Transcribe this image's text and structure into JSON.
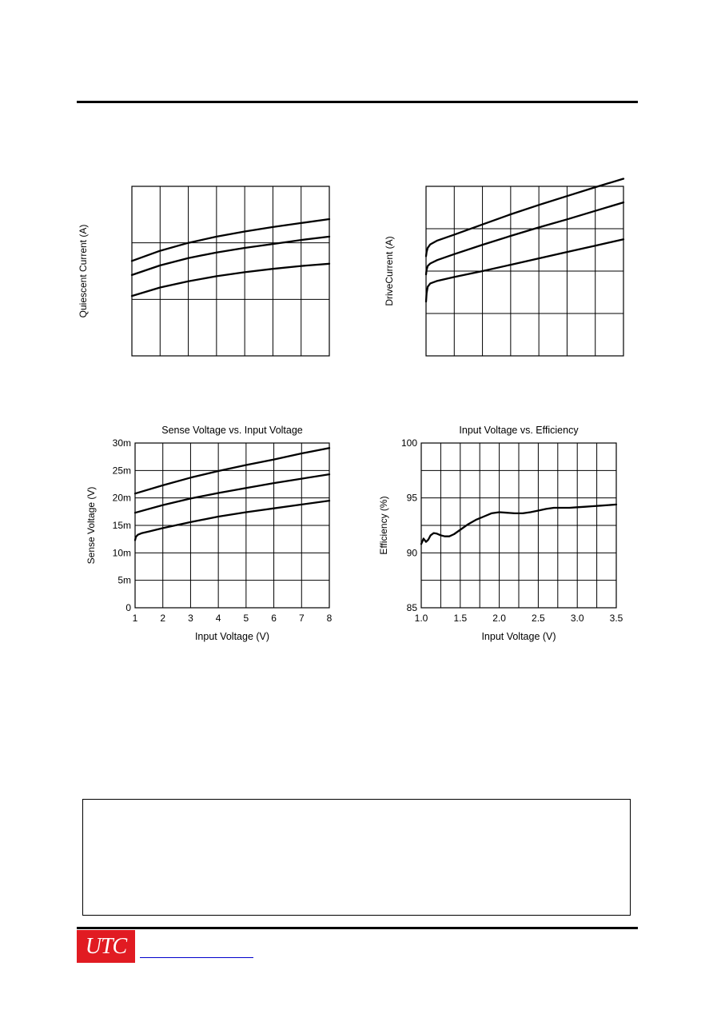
{
  "colors": {
    "rule": "#000000",
    "logo_bg": "#e11b22",
    "logo_fg": "#ffffff",
    "link": "#0000cc"
  },
  "logo": {
    "text": "UTC"
  },
  "footer": {
    "link_text": ""
  },
  "chart_data": [
    {
      "id": "quiescent",
      "type": "line",
      "title": "",
      "xlabel": "",
      "ylabel": "Quiescent Current (A)",
      "xlim": [
        0,
        7
      ],
      "ylim": [
        0,
        3
      ],
      "xgrid": 7,
      "ygrid": 3,
      "x_ticks": [],
      "y_ticks": [],
      "series": [
        {
          "x": [
            0,
            1,
            2,
            3,
            4,
            5,
            6,
            7
          ],
          "y": [
            1.68,
            1.86,
            2.0,
            2.11,
            2.2,
            2.28,
            2.35,
            2.42
          ]
        },
        {
          "x": [
            0,
            1,
            2,
            3,
            4,
            5,
            6,
            7
          ],
          "y": [
            1.43,
            1.6,
            1.73,
            1.83,
            1.91,
            1.98,
            2.05,
            2.11
          ]
        },
        {
          "x": [
            0,
            1,
            2,
            3,
            4,
            5,
            6,
            7
          ],
          "y": [
            1.06,
            1.21,
            1.32,
            1.41,
            1.48,
            1.54,
            1.59,
            1.63
          ]
        }
      ]
    },
    {
      "id": "drive",
      "type": "line",
      "title": "",
      "xlabel": "",
      "ylabel": "DriveCurrent (A)",
      "xlim": [
        0,
        7
      ],
      "ylim": [
        0,
        4
      ],
      "xgrid": 7,
      "ygrid": 4,
      "x_ticks": [],
      "y_ticks": [],
      "series": [
        {
          "x": [
            0,
            0.02,
            0.06,
            0.15,
            0.4,
            1,
            2,
            3,
            4,
            5,
            6,
            7
          ],
          "y": [
            2.35,
            2.45,
            2.55,
            2.63,
            2.72,
            2.86,
            3.1,
            3.34,
            3.56,
            3.77,
            3.98,
            4.18
          ]
        },
        {
          "x": [
            0,
            0.02,
            0.06,
            0.15,
            0.4,
            1,
            2,
            3,
            4,
            5,
            6,
            7
          ],
          "y": [
            1.92,
            2.03,
            2.12,
            2.18,
            2.26,
            2.4,
            2.62,
            2.83,
            3.03,
            3.22,
            3.42,
            3.62
          ]
        },
        {
          "x": [
            0,
            0.02,
            0.06,
            0.15,
            0.4,
            1,
            2,
            3,
            4,
            5,
            6,
            7
          ],
          "y": [
            1.28,
            1.48,
            1.63,
            1.71,
            1.77,
            1.86,
            2.0,
            2.15,
            2.3,
            2.45,
            2.6,
            2.75
          ]
        }
      ]
    },
    {
      "id": "sense",
      "type": "line",
      "title": "Sense Voltage vs. Input Voltage",
      "xlabel": "Input Voltage (V)",
      "ylabel": "Sense Voltage (V)",
      "xlim": [
        1,
        8
      ],
      "ylim": [
        0,
        30
      ],
      "xgrid": 7,
      "ygrid": 6,
      "x_ticks": [
        {
          "v": 1,
          "label": "1"
        },
        {
          "v": 2,
          "label": "2"
        },
        {
          "v": 3,
          "label": "3"
        },
        {
          "v": 4,
          "label": "4"
        },
        {
          "v": 5,
          "label": "5"
        },
        {
          "v": 6,
          "label": "6"
        },
        {
          "v": 7,
          "label": "7"
        },
        {
          "v": 8,
          "label": "8"
        }
      ],
      "y_ticks": [
        {
          "v": 0,
          "label": "0"
        },
        {
          "v": 5,
          "label": "5m"
        },
        {
          "v": 10,
          "label": "10m"
        },
        {
          "v": 15,
          "label": "15m"
        },
        {
          "v": 20,
          "label": "20m"
        },
        {
          "v": 25,
          "label": "25m"
        },
        {
          "v": 30,
          "label": "30m"
        }
      ],
      "series": [
        {
          "x": [
            1,
            2,
            3,
            4,
            5,
            6,
            7,
            8
          ],
          "y": [
            20.8,
            22.3,
            23.7,
            24.9,
            26.0,
            27.0,
            28.1,
            29.1
          ]
        },
        {
          "x": [
            1,
            2,
            3,
            4,
            5,
            6,
            7,
            8
          ],
          "y": [
            17.3,
            18.7,
            19.9,
            20.9,
            21.8,
            22.7,
            23.5,
            24.3
          ]
        },
        {
          "x": [
            1,
            1.03,
            1.1,
            1.25,
            1.5,
            2,
            3,
            4,
            5,
            6,
            7,
            8
          ],
          "y": [
            12.3,
            12.9,
            13.3,
            13.6,
            13.9,
            14.5,
            15.6,
            16.6,
            17.4,
            18.1,
            18.8,
            19.5
          ]
        }
      ]
    },
    {
      "id": "efficiency",
      "type": "line",
      "title": "Input Voltage vs. Efficiency",
      "xlabel": "Input Voltage (V)",
      "ylabel": "Efficiency (%)",
      "xlim": [
        1.0,
        3.5
      ],
      "ylim": [
        85,
        100
      ],
      "xgrid": 10,
      "ygrid": 6,
      "x_ticks": [
        {
          "v": 1.0,
          "label": "1.0"
        },
        {
          "v": 1.5,
          "label": "1.5"
        },
        {
          "v": 2.0,
          "label": "2.0"
        },
        {
          "v": 2.5,
          "label": "2.5"
        },
        {
          "v": 3.0,
          "label": "3.0"
        },
        {
          "v": 3.5,
          "label": "3.5"
        }
      ],
      "y_ticks": [
        {
          "v": 85,
          "label": "85"
        },
        {
          "v": 90,
          "label": "90"
        },
        {
          "v": 95,
          "label": "95"
        },
        {
          "v": 100,
          "label": "100"
        }
      ],
      "series": [
        {
          "x": [
            1.0,
            1.03,
            1.06,
            1.09,
            1.12,
            1.16,
            1.2,
            1.25,
            1.3,
            1.36,
            1.42,
            1.5,
            1.6,
            1.7,
            1.8,
            1.9,
            2.0,
            2.1,
            2.2,
            2.3,
            2.4,
            2.5,
            2.6,
            2.7,
            2.8,
            2.9,
            3.0,
            3.1,
            3.2,
            3.3,
            3.4,
            3.5
          ],
          "y": [
            90.8,
            91.3,
            91.0,
            91.2,
            91.6,
            91.8,
            91.75,
            91.6,
            91.5,
            91.5,
            91.7,
            92.1,
            92.6,
            93.0,
            93.3,
            93.6,
            93.7,
            93.65,
            93.6,
            93.6,
            93.7,
            93.85,
            94.0,
            94.1,
            94.1,
            94.1,
            94.15,
            94.2,
            94.25,
            94.3,
            94.35,
            94.4
          ]
        }
      ]
    }
  ]
}
